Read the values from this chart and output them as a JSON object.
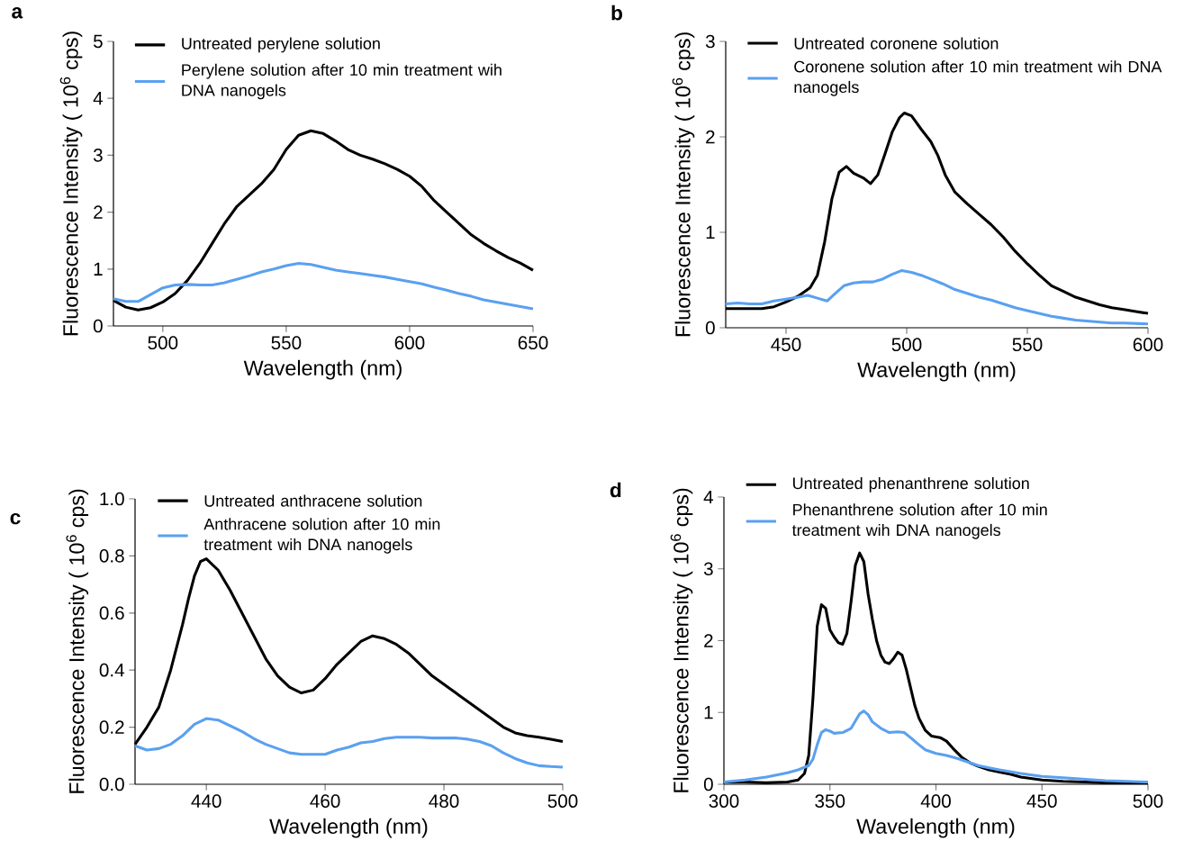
{
  "chart_data": [
    {
      "type": "line",
      "title": "a",
      "xlabel": "Wavelength (nm)",
      "ylabel": "Fluorescence Intensity ( 10$^{6}$ cps)",
      "xlim": [
        480,
        650
      ],
      "ylim": [
        0,
        5
      ],
      "xticks": [
        500,
        550,
        600,
        650
      ],
      "yticks": [
        0,
        1,
        2,
        3,
        4,
        5
      ],
      "legend": "top left",
      "series": [
        {
          "name": "Untreated perylene solution",
          "color": "#000000",
          "x": [
            480,
            485,
            490,
            495,
            500,
            505,
            510,
            515,
            520,
            525,
            530,
            535,
            540,
            545,
            550,
            555,
            560,
            565,
            570,
            575,
            580,
            585,
            590,
            595,
            600,
            605,
            610,
            615,
            620,
            625,
            630,
            635,
            640,
            645,
            650
          ],
          "values": [
            0.45,
            0.33,
            0.28,
            0.32,
            0.42,
            0.57,
            0.8,
            1.1,
            1.45,
            1.8,
            2.1,
            2.3,
            2.5,
            2.75,
            3.1,
            3.35,
            3.43,
            3.38,
            3.25,
            3.1,
            3.0,
            2.93,
            2.85,
            2.75,
            2.63,
            2.45,
            2.2,
            2.0,
            1.8,
            1.6,
            1.45,
            1.32,
            1.2,
            1.1,
            0.98
          ]
        },
        {
          "name": "Perylene solution after 10 min treatment wih DNA nanogels",
          "color": "#5aa0f0",
          "x": [
            480,
            485,
            490,
            495,
            500,
            505,
            510,
            515,
            520,
            525,
            530,
            535,
            540,
            545,
            550,
            555,
            560,
            565,
            570,
            575,
            580,
            585,
            590,
            595,
            600,
            605,
            610,
            615,
            620,
            625,
            630,
            635,
            640,
            645,
            650
          ],
          "values": [
            0.48,
            0.43,
            0.43,
            0.55,
            0.67,
            0.72,
            0.73,
            0.72,
            0.72,
            0.76,
            0.82,
            0.88,
            0.95,
            1.0,
            1.06,
            1.1,
            1.08,
            1.03,
            0.98,
            0.95,
            0.92,
            0.89,
            0.86,
            0.82,
            0.78,
            0.74,
            0.68,
            0.63,
            0.57,
            0.52,
            0.46,
            0.42,
            0.38,
            0.34,
            0.3
          ]
        }
      ]
    },
    {
      "type": "line",
      "title": "b",
      "xlabel": "Wavelength (nm)",
      "ylabel": "Fluorescence Intensity ( 10$^{6}$ cps)",
      "xlim": [
        425,
        600
      ],
      "ylim": [
        0,
        3
      ],
      "xticks": [
        450,
        500,
        550,
        600
      ],
      "yticks": [
        0,
        1,
        2,
        3
      ],
      "legend": "top left",
      "series": [
        {
          "name": "Untreated coronene solution",
          "color": "#000000",
          "x": [
            425,
            430,
            435,
            440,
            445,
            450,
            455,
            460,
            463,
            466,
            469,
            472,
            475,
            478,
            482,
            485,
            488,
            491,
            494,
            497,
            499,
            502,
            506,
            510,
            513,
            516,
            520,
            525,
            530,
            535,
            540,
            545,
            550,
            555,
            560,
            565,
            570,
            575,
            580,
            585,
            590,
            595,
            600
          ],
          "values": [
            0.2,
            0.2,
            0.2,
            0.2,
            0.22,
            0.27,
            0.33,
            0.42,
            0.55,
            0.9,
            1.35,
            1.63,
            1.69,
            1.62,
            1.57,
            1.51,
            1.6,
            1.82,
            2.05,
            2.2,
            2.25,
            2.22,
            2.08,
            1.95,
            1.8,
            1.6,
            1.42,
            1.3,
            1.19,
            1.08,
            0.95,
            0.8,
            0.67,
            0.55,
            0.44,
            0.38,
            0.32,
            0.28,
            0.24,
            0.21,
            0.19,
            0.17,
            0.15
          ]
        },
        {
          "name": "Coronene solution after 10 min treatment wih DNA nanogels",
          "color": "#5aa0f0",
          "x": [
            425,
            430,
            435,
            440,
            445,
            450,
            455,
            459,
            463,
            467,
            470,
            474,
            478,
            482,
            486,
            490,
            494,
            498,
            502,
            506,
            510,
            515,
            520,
            525,
            530,
            535,
            540,
            545,
            550,
            555,
            560,
            565,
            570,
            575,
            580,
            585,
            590,
            600
          ],
          "values": [
            0.25,
            0.26,
            0.25,
            0.25,
            0.28,
            0.3,
            0.32,
            0.34,
            0.31,
            0.28,
            0.35,
            0.44,
            0.47,
            0.48,
            0.48,
            0.51,
            0.56,
            0.6,
            0.58,
            0.55,
            0.51,
            0.46,
            0.4,
            0.36,
            0.32,
            0.29,
            0.25,
            0.21,
            0.18,
            0.15,
            0.12,
            0.1,
            0.08,
            0.07,
            0.06,
            0.05,
            0.05,
            0.04
          ]
        }
      ]
    },
    {
      "type": "line",
      "title": "c",
      "xlabel": "Wavelength (nm)",
      "ylabel": "Fluorescence Intensity ( 10$^{6}$ cps)",
      "xlim": [
        428,
        500
      ],
      "ylim": [
        0,
        1.0
      ],
      "xticks": [
        440,
        460,
        480,
        500
      ],
      "yticks": [
        {
          "value": 0,
          "label": "0.0"
        },
        0.2,
        0.4,
        0.6,
        0.8,
        {
          "value": 1.0,
          "label": "1.0"
        }
      ],
      "legend": "top left",
      "series": [
        {
          "name": "Untreated anthracene solution",
          "color": "#000000",
          "x": [
            428,
            430,
            432,
            434,
            436,
            437,
            438,
            439,
            440,
            442,
            444,
            446,
            448,
            450,
            452,
            454,
            456,
            458,
            460,
            462,
            464,
            466,
            468,
            470,
            472,
            474,
            476,
            478,
            480,
            482,
            484,
            486,
            488,
            490,
            492,
            494,
            496,
            498,
            500
          ],
          "values": [
            0.14,
            0.2,
            0.27,
            0.4,
            0.56,
            0.65,
            0.73,
            0.78,
            0.79,
            0.75,
            0.68,
            0.6,
            0.52,
            0.44,
            0.38,
            0.34,
            0.32,
            0.33,
            0.37,
            0.42,
            0.46,
            0.5,
            0.52,
            0.51,
            0.49,
            0.46,
            0.42,
            0.38,
            0.35,
            0.32,
            0.29,
            0.26,
            0.23,
            0.2,
            0.18,
            0.17,
            0.165,
            0.158,
            0.15
          ]
        },
        {
          "name": "Anthracene solution after 10 min treatment wih DNA nanogels",
          "color": "#5aa0f0",
          "x": [
            428,
            430,
            432,
            434,
            436,
            438,
            440,
            442,
            444,
            446,
            448,
            450,
            452,
            454,
            456,
            458,
            460,
            462,
            464,
            466,
            468,
            470,
            472,
            474,
            476,
            478,
            480,
            482,
            484,
            486,
            488,
            490,
            492,
            494,
            496,
            498,
            500
          ],
          "values": [
            0.135,
            0.12,
            0.125,
            0.14,
            0.17,
            0.21,
            0.23,
            0.225,
            0.205,
            0.185,
            0.16,
            0.14,
            0.125,
            0.11,
            0.105,
            0.105,
            0.105,
            0.12,
            0.13,
            0.145,
            0.15,
            0.16,
            0.165,
            0.165,
            0.165,
            0.162,
            0.162,
            0.162,
            0.158,
            0.15,
            0.135,
            0.11,
            0.09,
            0.075,
            0.065,
            0.062,
            0.06
          ]
        }
      ]
    },
    {
      "type": "line",
      "title": "d",
      "xlabel": "Wavelength (nm)",
      "ylabel": "Fluorescence Intensity ( 10$^{6}$ cps)",
      "xlim": [
        300,
        500
      ],
      "ylim": [
        0,
        4
      ],
      "xticks": [
        300,
        350,
        400,
        450,
        500
      ],
      "yticks": [
        0,
        1,
        2,
        3,
        4
      ],
      "legend": "top left",
      "series": [
        {
          "name": "Untreated phenanthrene solution",
          "color": "#000000",
          "x": [
            300,
            310,
            320,
            330,
            335,
            338,
            340,
            342,
            344,
            346,
            348,
            350,
            352,
            354,
            356,
            358,
            360,
            362,
            364,
            366,
            368,
            370,
            372,
            374,
            376,
            378,
            380,
            382,
            384,
            386,
            388,
            390,
            392,
            395,
            398,
            402,
            405,
            408,
            412,
            416,
            420,
            425,
            430,
            435,
            440,
            450,
            460,
            470,
            480,
            500
          ],
          "values": [
            0.03,
            0.03,
            0.02,
            0.03,
            0.06,
            0.15,
            0.4,
            1.2,
            2.2,
            2.5,
            2.45,
            2.15,
            2.05,
            1.97,
            1.95,
            2.1,
            2.55,
            3.05,
            3.22,
            3.1,
            2.65,
            2.3,
            2.0,
            1.8,
            1.7,
            1.68,
            1.75,
            1.84,
            1.8,
            1.6,
            1.35,
            1.1,
            0.92,
            0.75,
            0.67,
            0.65,
            0.6,
            0.5,
            0.38,
            0.3,
            0.25,
            0.2,
            0.17,
            0.14,
            0.1,
            0.06,
            0.04,
            0.03,
            0.02,
            0.02
          ]
        },
        {
          "name": "Phenanthrene solution after 10 min treatment wih DNA nanogels",
          "color": "#5aa0f0",
          "x": [
            300,
            310,
            320,
            330,
            335,
            340,
            342,
            344,
            346,
            348,
            350,
            352,
            356,
            360,
            362,
            364,
            366,
            368,
            370,
            374,
            378,
            382,
            385,
            388,
            392,
            395,
            400,
            405,
            410,
            415,
            420,
            425,
            430,
            440,
            450,
            460,
            470,
            480,
            490,
            500
          ],
          "values": [
            0.03,
            0.06,
            0.1,
            0.16,
            0.2,
            0.26,
            0.35,
            0.55,
            0.72,
            0.76,
            0.74,
            0.71,
            0.72,
            0.78,
            0.88,
            0.98,
            1.02,
            0.97,
            0.87,
            0.78,
            0.72,
            0.73,
            0.72,
            0.65,
            0.55,
            0.48,
            0.43,
            0.4,
            0.36,
            0.31,
            0.26,
            0.23,
            0.2,
            0.15,
            0.11,
            0.09,
            0.07,
            0.05,
            0.04,
            0.03
          ]
        }
      ]
    }
  ]
}
